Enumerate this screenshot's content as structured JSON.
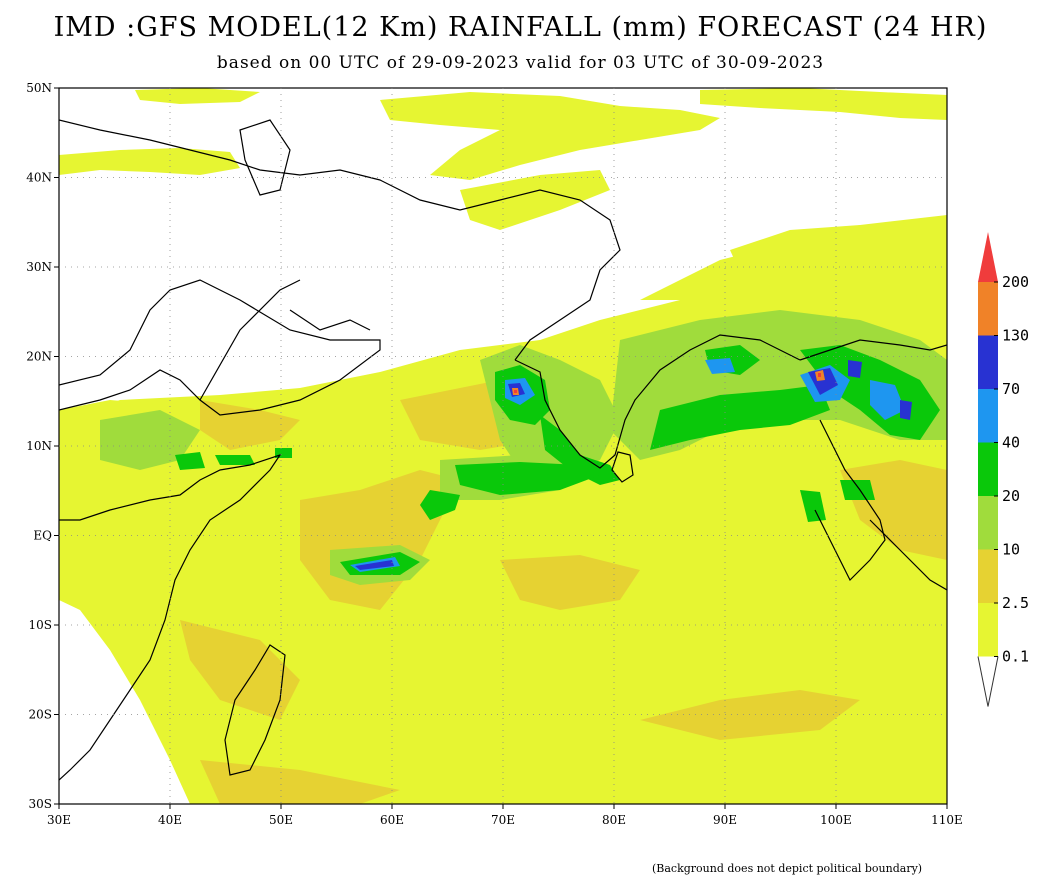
{
  "title": "IMD :GFS MODEL(12 Km) RAINFALL (mm) FORECAST (24 HR)",
  "subtitle": "based on 00 UTC of 29-09-2023 valid for 03 UTC of 30-09-2023",
  "footnote": "(Background does not depict political boundary)",
  "axes": {
    "lat_labels": [
      "50N",
      "40N",
      "30N",
      "20N",
      "10N",
      "EQ",
      "10S",
      "20S",
      "30S"
    ],
    "lon_labels": [
      "30E",
      "40E",
      "50E",
      "60E",
      "70E",
      "80E",
      "90E",
      "100E",
      "110E"
    ],
    "lat_range": [
      -30,
      50
    ],
    "lon_range": [
      30,
      110
    ],
    "grid": "dotted"
  },
  "legend": {
    "placement": "right",
    "labels": [
      "200",
      "130",
      "70",
      "40",
      "20",
      "10",
      "2.5",
      "0.1"
    ],
    "colors": [
      "#f03c3c",
      "#f08228",
      "#2832d2",
      "#1e96f0",
      "#0ac80a",
      "#a0dc3c",
      "#e6d232",
      "#e6f532"
    ]
  },
  "colors": {
    "light_rain": "#e6f532",
    "moderate_rain": "#e6d232",
    "rain_10": "#a0dc3c",
    "rain_20": "#0ac80a",
    "rain_40": "#1e96f0",
    "rain_70": "#2832d2",
    "rain_130": "#f08228",
    "rain_200": "#f03c3c"
  }
}
